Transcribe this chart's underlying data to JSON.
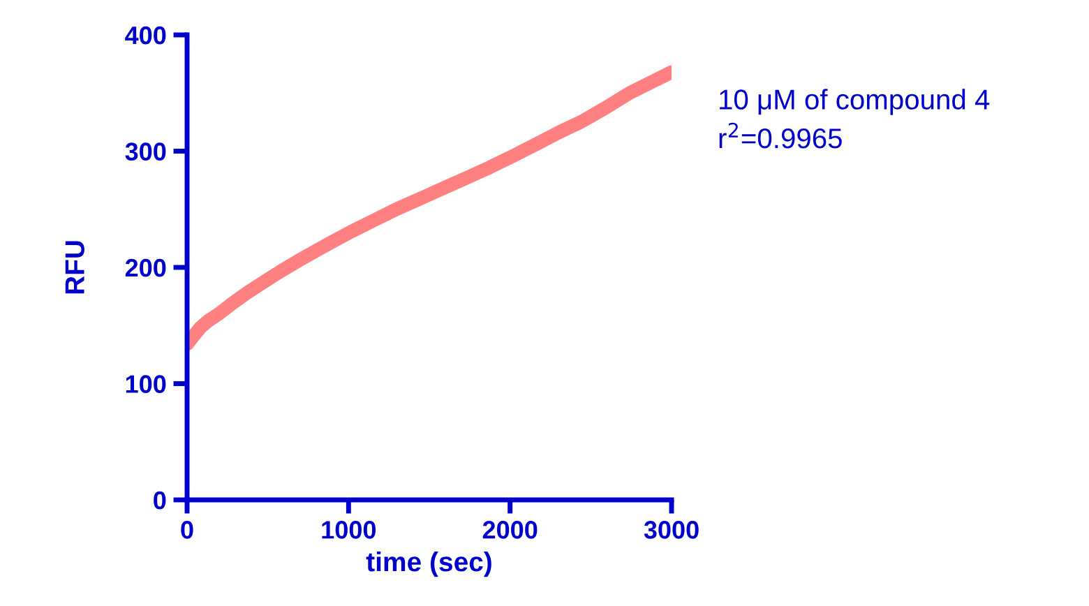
{
  "chart_data": {
    "type": "line",
    "xlabel": "time (sec)",
    "ylabel": "RFU",
    "annotations": [
      "10 μM of compound 4",
      "r$^{2}$=0.9965"
    ],
    "x": [
      0,
      40,
      81,
      130,
      196,
      280,
      370,
      470,
      572,
      717,
      860,
      1006,
      1150,
      1295,
      1440,
      1584,
      1730,
      1873,
      2020,
      2162,
      2300,
      2451,
      2600,
      2740,
      2870,
      3000
    ],
    "series": [
      {
        "color": "#ff8080",
        "values": [
          134,
          141,
          148,
          154,
          160,
          169,
          178,
          187,
          196,
          208,
          219,
          230,
          240,
          250,
          259,
          268,
          277,
          286,
          296,
          306,
          316,
          326,
          338,
          350,
          359,
          368
        ]
      }
    ],
    "xlim": [
      0,
      3000
    ],
    "xticks": [
      0,
      1000,
      2000,
      3000
    ],
    "ylim": [
      0,
      400
    ],
    "yticks": [
      0,
      100,
      200,
      300,
      400
    ],
    "grid": false,
    "legend": false,
    "marker": "none",
    "line_style": "solid"
  }
}
